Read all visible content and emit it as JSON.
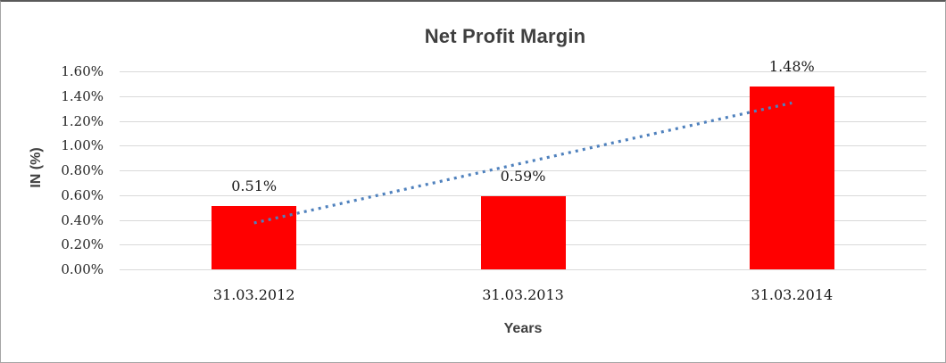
{
  "chart_data": {
    "type": "bar",
    "title": "Net Profit Margin",
    "xlabel": "Years",
    "ylabel": "IN (%)",
    "categories": [
      "31.03.2012",
      "31.03.2013",
      "31.03.2014"
    ],
    "values": [
      0.51,
      0.59,
      1.48
    ],
    "bar_labels": [
      "0.51%",
      "0.59%",
      "1.48%"
    ],
    "ylim": [
      0,
      1.6
    ],
    "yticks": [
      {
        "value": 0.0,
        "label": "0.00%"
      },
      {
        "value": 0.2,
        "label": "0.20%"
      },
      {
        "value": 0.4,
        "label": "0.40%"
      },
      {
        "value": 0.6,
        "label": "0.60%"
      },
      {
        "value": 0.8,
        "label": "0.80%"
      },
      {
        "value": 1.0,
        "label": "1.00%"
      },
      {
        "value": 1.2,
        "label": "1.20%"
      },
      {
        "value": 1.4,
        "label": "1.40%"
      },
      {
        "value": 1.6,
        "label": "1.60%"
      }
    ],
    "grid": true,
    "legend": "none",
    "trendline": {
      "type": "linear",
      "style": "dotted",
      "x_start": 0,
      "value_start": 0.375,
      "x_end": 2,
      "value_end": 1.345
    }
  },
  "colors": {
    "bar": "#ff0000",
    "trendline": "#4f81bd",
    "gridline": "#d9d9d9"
  }
}
